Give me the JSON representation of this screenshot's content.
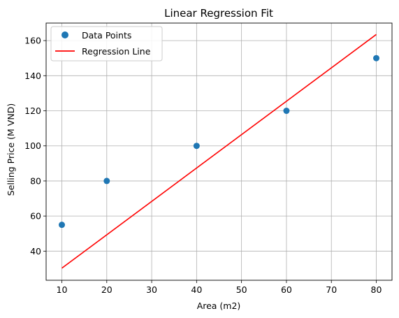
{
  "chart_data": {
    "type": "scatter",
    "title": "Linear Regression Fit",
    "xlabel": "Area (m2)",
    "ylabel": "Selling Price (M VND)",
    "xlim": [
      6.5,
      83.5
    ],
    "ylim": [
      23.4,
      170.0
    ],
    "xticks": [
      10,
      20,
      30,
      40,
      50,
      60,
      70,
      80
    ],
    "yticks": [
      40,
      60,
      80,
      100,
      120,
      140,
      160
    ],
    "grid": true,
    "legend_position": "top-left",
    "series": [
      {
        "name": "Data Points",
        "kind": "scatter",
        "color": "#1f77b4",
        "x": [
          10,
          20,
          40,
          60,
          80
        ],
        "y": [
          55,
          80,
          100,
          120,
          150
        ]
      },
      {
        "name": "Regression Line",
        "kind": "line",
        "color": "#ff0000",
        "x": [
          10,
          80
        ],
        "y": [
          30.3,
          163.5
        ]
      }
    ]
  }
}
